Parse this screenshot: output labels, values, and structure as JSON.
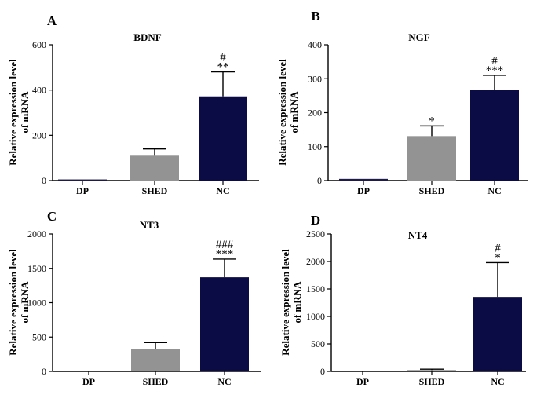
{
  "chart_data": [
    {
      "type": "bar",
      "panel": "A",
      "title": "BDNF",
      "ylabel_line1": "Relative expression level",
      "ylabel_line2": "of mRNA",
      "categories": [
        "DP",
        "SHED",
        "NC"
      ],
      "values": [
        5,
        110,
        372
      ],
      "errors": [
        0,
        30,
        108
      ],
      "annotations": [
        "",
        "",
        "**"
      ],
      "annotations_top": [
        "",
        "",
        "#"
      ],
      "ylim": [
        0,
        600
      ],
      "yticks": [
        0,
        200,
        400,
        600
      ],
      "colors": [
        "#1e1b4b",
        "#939393",
        "#0b0b45"
      ]
    },
    {
      "type": "bar",
      "panel": "B",
      "title": "NGF",
      "ylabel_line1": "Relative expression level",
      "ylabel_line2": "of mRNA",
      "categories": [
        "DP",
        "SHED",
        "NC"
      ],
      "values": [
        5,
        131,
        266
      ],
      "errors": [
        0,
        30,
        44
      ],
      "annotations": [
        "",
        "*",
        "***"
      ],
      "annotations_top": [
        "",
        "",
        "#"
      ],
      "ylim": [
        0,
        400
      ],
      "yticks": [
        0,
        100,
        200,
        300,
        400
      ],
      "colors": [
        "#1e1b4b",
        "#939393",
        "#0b0b45"
      ]
    },
    {
      "type": "bar",
      "panel": "C",
      "title": "NT3",
      "ylabel_line1": "Relative expression level",
      "ylabel_line2": "of mRNA",
      "categories": [
        "DP",
        "SHED",
        "NC"
      ],
      "values": [
        5,
        325,
        1370
      ],
      "errors": [
        0,
        95,
        265
      ],
      "annotations": [
        "",
        "",
        "***"
      ],
      "annotations_top": [
        "",
        "",
        "###"
      ],
      "ylim": [
        0,
        2000
      ],
      "yticks": [
        0,
        500,
        1000,
        1500,
        2000
      ],
      "colors": [
        "#1e1b4b",
        "#939393",
        "#0b0b45"
      ]
    },
    {
      "type": "bar",
      "panel": "D",
      "title": "NT4",
      "ylabel_line1": "Relative expression level",
      "ylabel_line2": "of mRNA",
      "categories": [
        "DP",
        "SHED",
        "NC"
      ],
      "values": [
        5,
        25,
        1355
      ],
      "errors": [
        0,
        15,
        625
      ],
      "annotations": [
        "",
        "",
        "*"
      ],
      "annotations_top": [
        "",
        "",
        "#"
      ],
      "ylim": [
        0,
        2500
      ],
      "yticks": [
        0,
        500,
        1000,
        1500,
        2000,
        2500
      ],
      "colors": [
        "#1e1b4b",
        "#939393",
        "#0b0b45"
      ]
    }
  ]
}
